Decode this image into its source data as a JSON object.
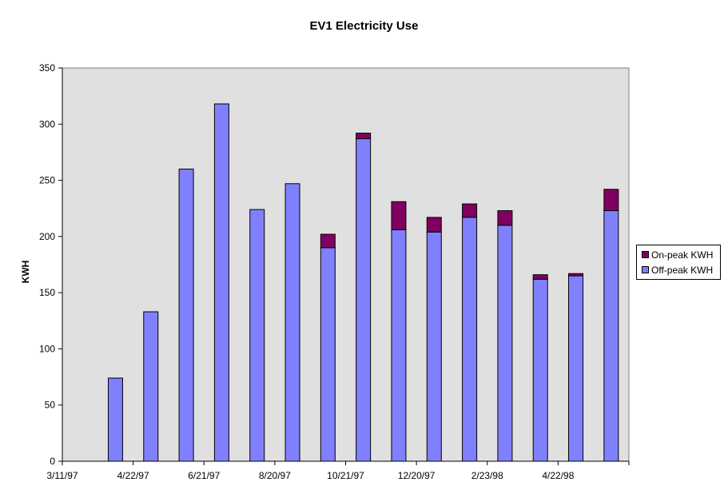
{
  "chart_data": {
    "type": "bar",
    "stacked": true,
    "title": "EV1 Electricity Use",
    "xlabel": "",
    "ylabel": "KWH",
    "ylim": [
      0,
      350
    ],
    "yticks": [
      0,
      50,
      100,
      150,
      200,
      250,
      300,
      350
    ],
    "x_tick_labels": [
      "3/11/97",
      "4/22/97",
      "6/21/97",
      "8/20/97",
      "10/21/97",
      "12/20/97",
      "2/23/98",
      "4/22/98"
    ],
    "bar_count": 16,
    "series": [
      {
        "name": "Off-peak KWH",
        "color": "#8080ff",
        "values": [
          0,
          74,
          133,
          260,
          318,
          224,
          247,
          190,
          287,
          206,
          204,
          217,
          210,
          162,
          165,
          223
        ]
      },
      {
        "name": "On-peak KWH",
        "color": "#800060",
        "values": [
          0,
          0,
          0,
          0,
          0,
          0,
          0,
          12,
          5,
          25,
          13,
          12,
          13,
          4,
          2,
          19
        ]
      }
    ],
    "legend_position": "right",
    "plot_background": "#e0e0e0"
  }
}
